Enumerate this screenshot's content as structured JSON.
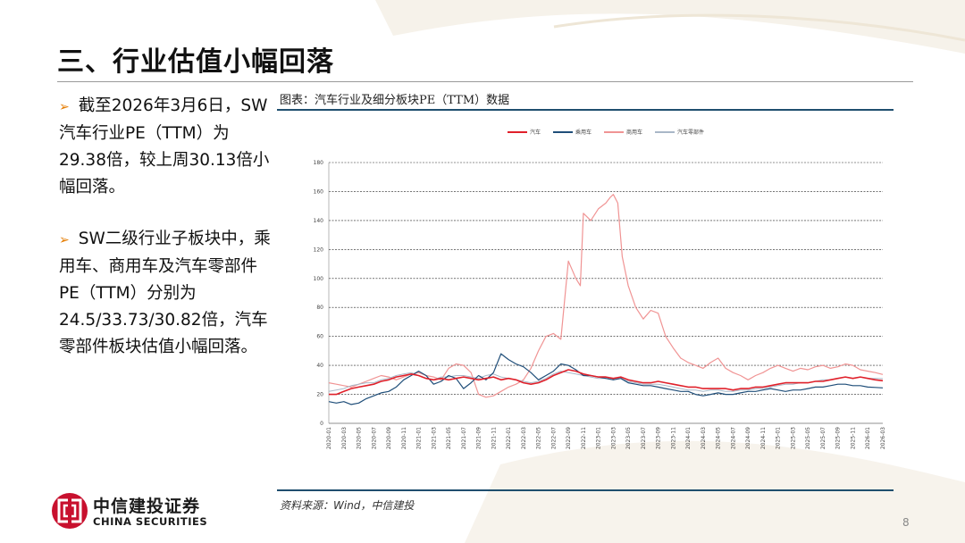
{
  "slide": {
    "title": "三、行业估值小幅回落",
    "page_number": "8",
    "source": "资料来源：Wind，中信建投",
    "logo_cn": "中信建投证券",
    "logo_en": "CHINA SECURITIES"
  },
  "bullets": [
    {
      "marker": "➢",
      "text": "截至2026年3月6日，SW汽车行业PE（TTM）为29.38倍，较上周30.13倍小幅回落。"
    },
    {
      "marker": "➢",
      "text": "SW二级行业子板块中，乘用车、商用车及汽车零部件PE（TTM）分别为24.5/33.73/30.82倍，汽车零部件板块估值小幅回落。"
    }
  ],
  "colors": {
    "accent": "#e57c00",
    "rule": "#1f4e6e",
    "brand_red": "#c8102e"
  },
  "chart_data": {
    "type": "line",
    "title": "图表：汽车行业及细分板块PE（TTM）数据",
    "ylim": [
      0,
      180
    ],
    "y_ticks": [
      0,
      20,
      40,
      60,
      80,
      100,
      120,
      140,
      160,
      180
    ],
    "grid": "dashed-horizontal",
    "legend_position": "top-center",
    "x_labels": [
      "2020-01",
      "2020-03",
      "2020-05",
      "2020-07",
      "2020-09",
      "2020-11",
      "2021-01",
      "2021-03",
      "2021-05",
      "2021-07",
      "2021-09",
      "2021-11",
      "2022-01",
      "2022-03",
      "2022-05",
      "2022-07",
      "2022-09",
      "2022-11",
      "2023-01",
      "2023-03",
      "2023-05",
      "2023-07",
      "2023-09",
      "2023-11",
      "2024-01",
      "2024-03",
      "2024-05",
      "2024-07",
      "2024-09",
      "2024-11",
      "2025-01",
      "2025-03",
      "2025-05",
      "2025-07",
      "2025-09",
      "2025-11",
      "2026-01",
      "2026-03"
    ],
    "series": [
      {
        "name": "汽车",
        "color": "#e0202a",
        "width": 1.6,
        "points": [
          [
            0,
            20
          ],
          [
            0.5,
            20
          ],
          [
            1,
            22
          ],
          [
            1.5,
            24
          ],
          [
            2,
            25
          ],
          [
            2.5,
            26
          ],
          [
            3,
            27
          ],
          [
            3.5,
            29
          ],
          [
            4,
            30
          ],
          [
            4.5,
            32
          ],
          [
            5,
            33
          ],
          [
            5.5,
            34
          ],
          [
            6,
            33
          ],
          [
            6.5,
            31
          ],
          [
            7,
            30
          ],
          [
            7.5,
            31
          ],
          [
            8,
            30
          ],
          [
            8.5,
            31
          ],
          [
            9,
            32
          ],
          [
            9.5,
            31
          ],
          [
            10,
            30
          ],
          [
            10.5,
            31
          ],
          [
            11,
            32
          ],
          [
            11.5,
            30
          ],
          [
            12,
            31
          ],
          [
            12.5,
            30
          ],
          [
            13,
            28
          ],
          [
            13.5,
            27
          ],
          [
            14,
            28
          ],
          [
            14.5,
            30
          ],
          [
            15,
            33
          ],
          [
            15.5,
            35
          ],
          [
            16,
            37
          ],
          [
            16.5,
            36
          ],
          [
            17,
            34
          ],
          [
            17.5,
            33
          ],
          [
            18,
            32
          ],
          [
            18.5,
            32
          ],
          [
            19,
            31
          ],
          [
            19.5,
            32
          ],
          [
            20,
            30
          ],
          [
            20.5,
            29
          ],
          [
            21,
            28
          ],
          [
            21.5,
            28
          ],
          [
            22,
            29
          ],
          [
            22.5,
            28
          ],
          [
            23,
            27
          ],
          [
            23.5,
            26
          ],
          [
            24,
            25
          ],
          [
            24.5,
            25
          ],
          [
            25,
            24
          ],
          [
            25.5,
            24
          ],
          [
            26,
            24
          ],
          [
            26.5,
            24
          ],
          [
            27,
            23
          ],
          [
            27.5,
            24
          ],
          [
            28,
            24
          ],
          [
            28.5,
            25
          ],
          [
            29,
            25
          ],
          [
            29.5,
            26
          ],
          [
            30,
            27
          ],
          [
            30.5,
            28
          ],
          [
            31,
            28
          ],
          [
            31.5,
            28
          ],
          [
            32,
            28
          ],
          [
            32.5,
            29
          ],
          [
            33,
            29
          ],
          [
            33.5,
            30
          ],
          [
            34,
            31
          ],
          [
            34.5,
            32
          ],
          [
            35,
            31
          ],
          [
            35.5,
            32
          ],
          [
            36,
            31
          ],
          [
            36.5,
            30
          ],
          [
            37,
            29.4
          ]
        ]
      },
      {
        "name": "乘用车",
        "color": "#1f4e79",
        "width": 1.2,
        "points": [
          [
            0,
            15
          ],
          [
            0.5,
            14
          ],
          [
            1,
            15
          ],
          [
            1.5,
            13
          ],
          [
            2,
            14
          ],
          [
            2.5,
            17
          ],
          [
            3,
            19
          ],
          [
            3.5,
            21
          ],
          [
            4,
            22
          ],
          [
            4.5,
            25
          ],
          [
            5,
            30
          ],
          [
            5.5,
            33
          ],
          [
            6,
            36
          ],
          [
            6.5,
            33
          ],
          [
            7,
            27
          ],
          [
            7.5,
            29
          ],
          [
            8,
            33
          ],
          [
            8.5,
            31
          ],
          [
            9,
            24
          ],
          [
            9.5,
            28
          ],
          [
            10,
            33
          ],
          [
            10.5,
            30
          ],
          [
            11,
            35
          ],
          [
            11.5,
            48
          ],
          [
            12,
            44
          ],
          [
            12.5,
            41
          ],
          [
            13,
            39
          ],
          [
            13.5,
            35
          ],
          [
            14,
            30
          ],
          [
            14.5,
            33
          ],
          [
            15,
            36
          ],
          [
            15.5,
            41
          ],
          [
            16,
            40
          ],
          [
            16.5,
            37
          ],
          [
            17,
            33
          ],
          [
            17.5,
            33
          ],
          [
            18,
            32
          ],
          [
            18.5,
            31
          ],
          [
            19,
            30
          ],
          [
            19.5,
            31
          ],
          [
            20,
            28
          ],
          [
            20.5,
            27
          ],
          [
            21,
            26
          ],
          [
            21.5,
            26
          ],
          [
            22,
            25
          ],
          [
            22.5,
            24
          ],
          [
            23,
            23
          ],
          [
            23.5,
            22
          ],
          [
            24,
            22
          ],
          [
            24.5,
            20
          ],
          [
            25,
            19
          ],
          [
            25.5,
            20
          ],
          [
            26,
            21
          ],
          [
            26.5,
            20
          ],
          [
            27,
            20
          ],
          [
            27.5,
            21
          ],
          [
            28,
            22
          ],
          [
            28.5,
            22
          ],
          [
            29,
            23
          ],
          [
            29.5,
            24
          ],
          [
            30,
            23
          ],
          [
            30.5,
            22
          ],
          [
            31,
            23
          ],
          [
            31.5,
            23
          ],
          [
            32,
            24
          ],
          [
            32.5,
            25
          ],
          [
            33,
            25
          ],
          [
            33.5,
            26
          ],
          [
            34,
            27
          ],
          [
            34.5,
            27
          ],
          [
            35,
            26
          ],
          [
            35.5,
            26
          ],
          [
            36,
            25
          ],
          [
            36.5,
            24.8
          ],
          [
            37,
            24.5
          ]
        ]
      },
      {
        "name": "商用车",
        "color": "#f09494",
        "width": 1.2,
        "points": [
          [
            0,
            28
          ],
          [
            0.5,
            27
          ],
          [
            1,
            26
          ],
          [
            1.5,
            25
          ],
          [
            2,
            27
          ],
          [
            2.5,
            29
          ],
          [
            3,
            31
          ],
          [
            3.5,
            33
          ],
          [
            4,
            32
          ],
          [
            4.5,
            30
          ],
          [
            5,
            32
          ],
          [
            5.5,
            34
          ],
          [
            6,
            35
          ],
          [
            6.5,
            33
          ],
          [
            7,
            32
          ],
          [
            7.5,
            30
          ],
          [
            8,
            38
          ],
          [
            8.5,
            41
          ],
          [
            9,
            40
          ],
          [
            9.5,
            35
          ],
          [
            10,
            20
          ],
          [
            10.5,
            18
          ],
          [
            11,
            19
          ],
          [
            11.5,
            22
          ],
          [
            12,
            25
          ],
          [
            12.5,
            27
          ],
          [
            13,
            30
          ],
          [
            13.5,
            38
          ],
          [
            14,
            50
          ],
          [
            14.5,
            60
          ],
          [
            15,
            62
          ],
          [
            15.5,
            58
          ],
          [
            16,
            112
          ],
          [
            16.5,
            100
          ],
          [
            16.8,
            95
          ],
          [
            17,
            145
          ],
          [
            17.5,
            140
          ],
          [
            18,
            148
          ],
          [
            18.5,
            152
          ],
          [
            18.8,
            156
          ],
          [
            19,
            158
          ],
          [
            19.3,
            152
          ],
          [
            19.6,
            115
          ],
          [
            20,
            95
          ],
          [
            20.5,
            80
          ],
          [
            21,
            72
          ],
          [
            21.5,
            78
          ],
          [
            22,
            76
          ],
          [
            22.5,
            60
          ],
          [
            23,
            52
          ],
          [
            23.5,
            45
          ],
          [
            24,
            42
          ],
          [
            24.5,
            40
          ],
          [
            25,
            38
          ],
          [
            25.5,
            42
          ],
          [
            26,
            45
          ],
          [
            26.5,
            38
          ],
          [
            27,
            35
          ],
          [
            27.5,
            33
          ],
          [
            28,
            30
          ],
          [
            28.5,
            33
          ],
          [
            29,
            35
          ],
          [
            29.5,
            38
          ],
          [
            30,
            40
          ],
          [
            30.5,
            38
          ],
          [
            31,
            36
          ],
          [
            31.5,
            38
          ],
          [
            32,
            37
          ],
          [
            32.5,
            39
          ],
          [
            33,
            40
          ],
          [
            33.5,
            38
          ],
          [
            34,
            39
          ],
          [
            34.5,
            41
          ],
          [
            35,
            40
          ],
          [
            35.5,
            37
          ],
          [
            36,
            36
          ],
          [
            36.5,
            35
          ],
          [
            37,
            33.7
          ]
        ]
      },
      {
        "name": "汽车零部件",
        "color": "#a9b7c7",
        "width": 1.0,
        "points": [
          [
            0,
            22
          ],
          [
            0.5,
            23
          ],
          [
            1,
            24
          ],
          [
            1.5,
            26
          ],
          [
            2,
            27
          ],
          [
            2.5,
            28
          ],
          [
            3,
            28
          ],
          [
            3.5,
            30
          ],
          [
            4,
            31
          ],
          [
            4.5,
            33
          ],
          [
            5,
            34
          ],
          [
            5.5,
            35
          ],
          [
            6,
            33
          ],
          [
            6.5,
            31
          ],
          [
            7,
            30
          ],
          [
            7.5,
            32
          ],
          [
            8,
            32
          ],
          [
            8.5,
            33
          ],
          [
            9,
            33
          ],
          [
            9.5,
            32
          ],
          [
            10,
            31
          ],
          [
            10.5,
            33
          ],
          [
            11,
            34
          ],
          [
            11.5,
            32
          ],
          [
            12,
            31
          ],
          [
            12.5,
            30
          ],
          [
            13,
            29
          ],
          [
            13.5,
            28
          ],
          [
            14,
            29
          ],
          [
            14.5,
            31
          ],
          [
            15,
            34
          ],
          [
            15.5,
            36
          ],
          [
            16,
            35
          ],
          [
            16.5,
            34
          ],
          [
            17,
            33
          ],
          [
            17.5,
            32
          ],
          [
            18,
            31
          ],
          [
            18.5,
            31
          ],
          [
            19,
            30
          ],
          [
            19.5,
            31
          ],
          [
            20,
            29
          ],
          [
            20.5,
            28
          ],
          [
            21,
            27
          ],
          [
            21.5,
            27
          ],
          [
            22,
            27
          ],
          [
            22.5,
            26
          ],
          [
            23,
            25
          ],
          [
            23.5,
            24
          ],
          [
            24,
            23
          ],
          [
            24.5,
            23
          ],
          [
            25,
            22
          ],
          [
            25.5,
            23
          ],
          [
            26,
            23
          ],
          [
            26.5,
            22
          ],
          [
            27,
            22
          ],
          [
            27.5,
            23
          ],
          [
            28,
            23
          ],
          [
            28.5,
            24
          ],
          [
            29,
            24
          ],
          [
            29.5,
            25
          ],
          [
            30,
            26
          ],
          [
            30.5,
            27
          ],
          [
            31,
            27
          ],
          [
            31.5,
            28
          ],
          [
            32,
            28
          ],
          [
            32.5,
            29
          ],
          [
            33,
            30
          ],
          [
            33.5,
            30
          ],
          [
            34,
            31
          ],
          [
            34.5,
            32
          ],
          [
            35,
            31
          ],
          [
            35.5,
            32
          ],
          [
            36,
            31
          ],
          [
            36.5,
            31
          ],
          [
            37,
            30.8
          ]
        ]
      }
    ]
  }
}
